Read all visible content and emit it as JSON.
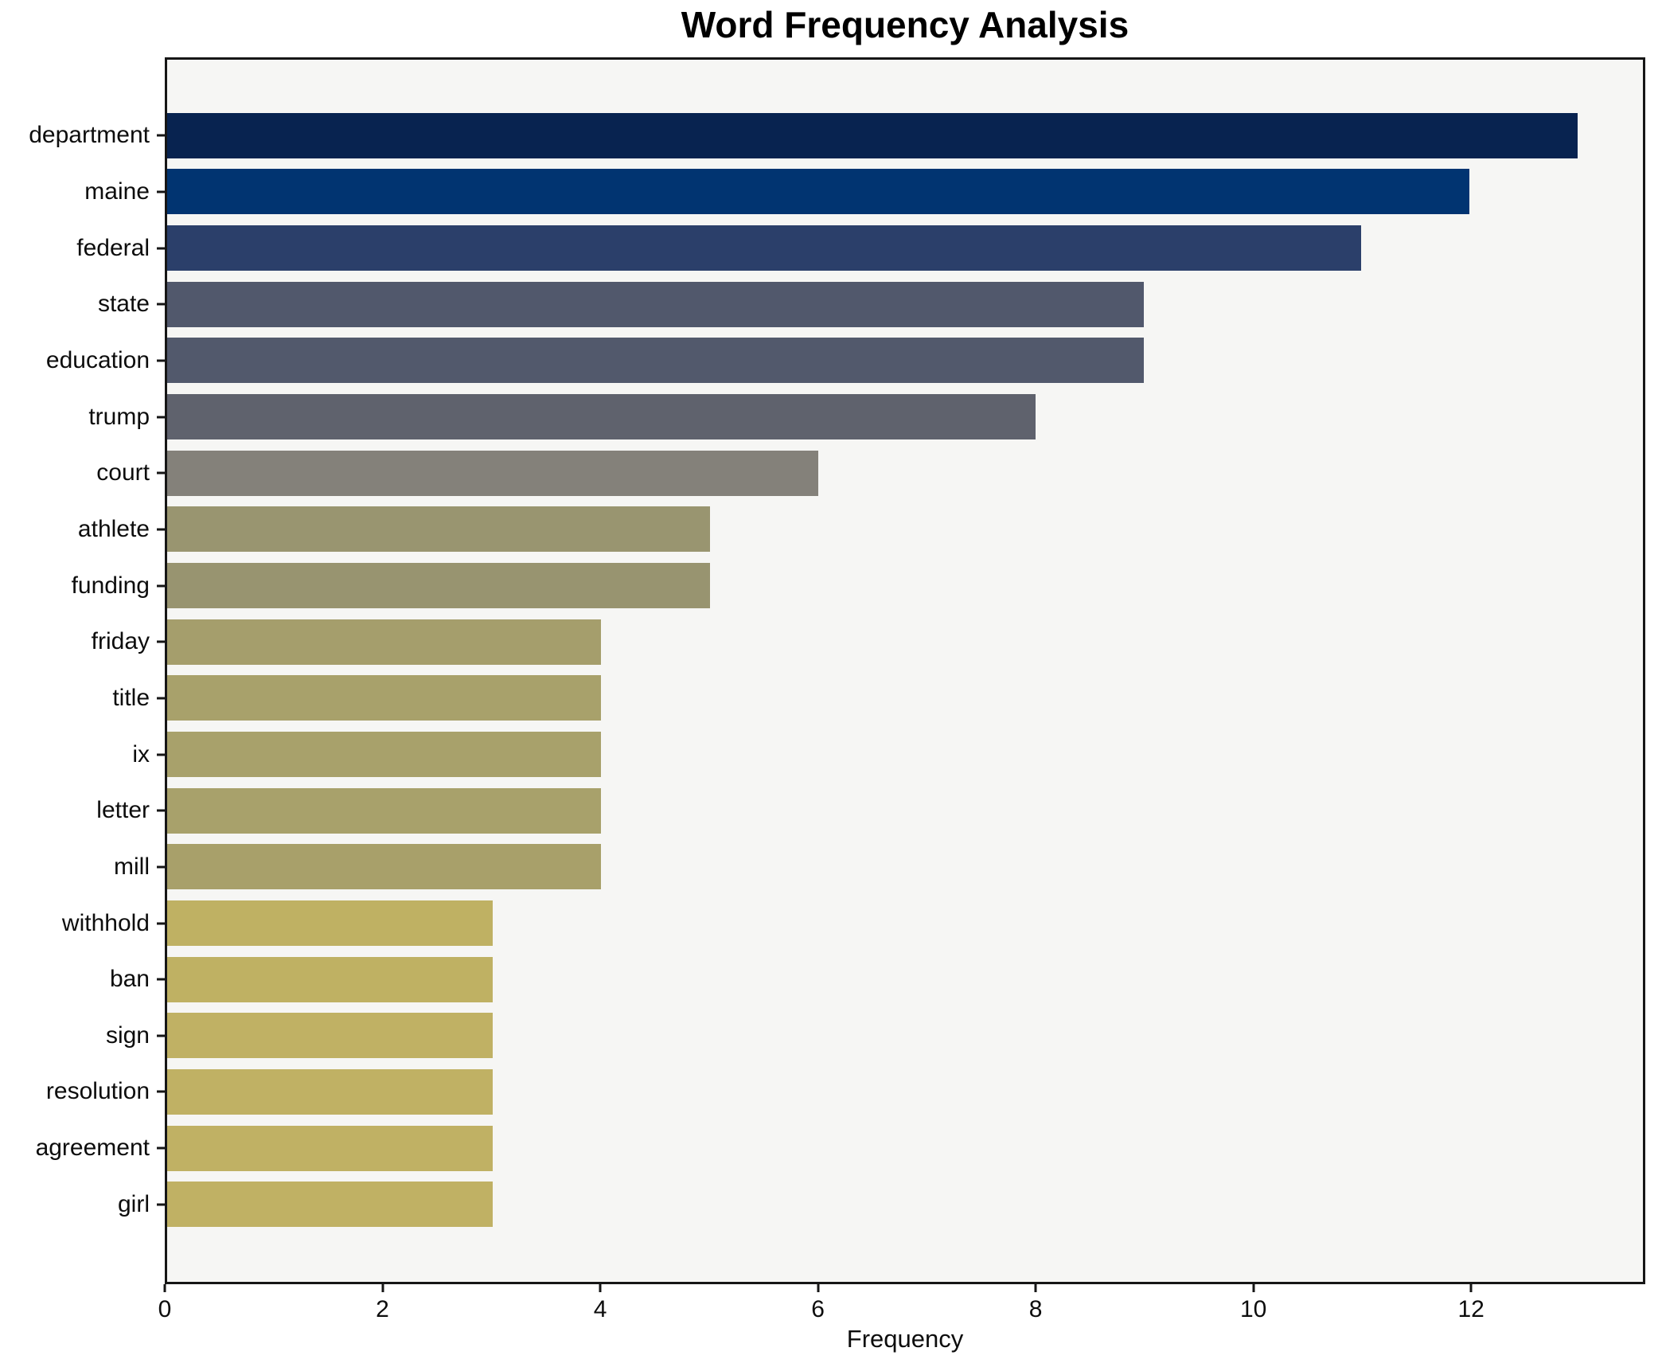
{
  "figure": {
    "background": "#ffffff",
    "plot_background": "#f6f6f4",
    "spine_color": "#161616",
    "text_color": "#0d0d0d"
  },
  "chart_data": {
    "type": "bar",
    "orientation": "horizontal",
    "title": "Word Frequency Analysis",
    "xlabel": "Frequency",
    "ylabel": "",
    "xlim": [
      0,
      13.6
    ],
    "xticks": [
      0,
      2,
      4,
      6,
      8,
      10,
      12
    ],
    "grid": false,
    "legend": "none",
    "bar_height_fraction": 0.8,
    "categories": [
      "department",
      "maine",
      "federal",
      "state",
      "education",
      "trump",
      "court",
      "athlete",
      "funding",
      "friday",
      "title",
      "ix",
      "letter",
      "mill",
      "withhold",
      "ban",
      "sign",
      "resolution",
      "agreement",
      "girl"
    ],
    "values": [
      13,
      12,
      11,
      9,
      9,
      8,
      6,
      5,
      5,
      4,
      4,
      4,
      4,
      4,
      3,
      3,
      3,
      3,
      3,
      3
    ],
    "bar_colors": [
      "#082350",
      "#013471",
      "#2b3f6a",
      "#51586c",
      "#52596c",
      "#5f626d",
      "#84817a",
      "#999570",
      "#989470",
      "#a59e6c",
      "#a8a16b",
      "#a8a16b",
      "#a8a16b",
      "#a8a06a",
      "#bfb163",
      "#bfb163",
      "#c0b164",
      "#c0b164",
      "#c0b164",
      "#c0b164"
    ]
  }
}
